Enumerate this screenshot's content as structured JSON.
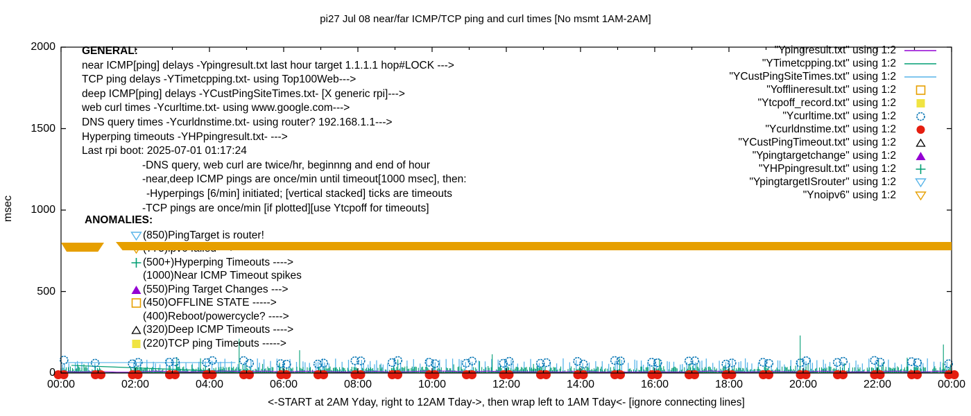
{
  "title": "pi27 Jul 08  near/far ICMP/TCP ping and curl times [No msmt 1AM-2AM]",
  "ylabel": "msec",
  "x_axis_note": "<-START at 2AM Yday, right to 12AM Tday->, then wrap left to 1AM Tday<- [ignore connecting lines]",
  "general": {
    "heading": "GENERAL:",
    "lines": [
      {
        "text": "near ICMP[ping] delays -Ypingresult.txt last hour target 1.1.1.1 hop#LOCK --->",
        "indent": 0
      },
      {
        "text": "TCP ping delays -YTimetcpping.txt- using Top100Web--->",
        "indent": 0
      },
      {
        "text": "deep ICMP[ping] delays -YCustPingSiteTimes.txt- [X generic rpi]--->",
        "indent": 0
      },
      {
        "text": "web curl times -Ycurltime.txt- using www.google.com--->",
        "indent": 0
      },
      {
        "text": "DNS query times -Ycurldnstime.txt- using router? 192.168.1.1--->",
        "indent": 0
      },
      {
        "text": "Hyperping timeouts -YHPpingresult.txt- --->",
        "indent": 0
      },
      {
        "text": "Last rpi boot: 2025-07-01 01:17:24",
        "indent": 0
      },
      {
        "text": "-DNS query, web curl are twice/hr, beginnng and end of hour",
        "indent": 1
      },
      {
        "text": "-near,deep ICMP pings are once/min until timeout[1000 msec], then:",
        "indent": 1
      },
      {
        "text": "-Hyperpings [6/min] initiated; [vertical stacked] ticks are timeouts",
        "indent": 2
      },
      {
        "text": "-TCP pings are once/min [if plotted][use Ytcpoff for timeouts]",
        "indent": 1
      }
    ]
  },
  "anomalies": {
    "heading": "ANOMALIES:",
    "items": [
      {
        "marker": "open-inv-triangle",
        "color": "#56b4e9",
        "text": "(850)PingTarget is router!"
      },
      {
        "marker": "open-inv-triangle",
        "color": "#e69f00",
        "text": "(775)ipv6 failed --->"
      },
      {
        "marker": "plus",
        "color": "#009e73",
        "text": "(500+)Hyperping Timeouts ---->"
      },
      {
        "marker": "none",
        "color": "",
        "text": "(1000)Near ICMP Timeout spikes"
      },
      {
        "marker": "filled-triangle",
        "color": "#9400d3",
        "text": "(550)Ping Target Changes --->"
      },
      {
        "marker": "open-square",
        "color": "#e69f00",
        "text": "(450)OFFLINE STATE ----->"
      },
      {
        "marker": "none",
        "color": "",
        "text": "(400)Reboot/powercycle? ---->"
      },
      {
        "marker": "open-triangle",
        "color": "#000000",
        "text": "(320)Deep ICMP Timeouts ---->"
      },
      {
        "marker": "filled-square",
        "color": "#f0e442",
        "text": "(220)TCP ping Timeouts ----->"
      }
    ]
  },
  "legend": [
    {
      "label": "\"Ypingresult.txt\" using 1:2",
      "marker": "line",
      "color": "#9400d3"
    },
    {
      "label": "\"YTimetcpping.txt\" using 1:2",
      "marker": "line",
      "color": "#009e73"
    },
    {
      "label": "\"YCustPingSiteTimes.txt\" using 1:2",
      "marker": "line",
      "color": "#56b4e9"
    },
    {
      "label": "\"Yofflineresult.txt\" using 1:2",
      "marker": "open-square",
      "color": "#e69f00"
    },
    {
      "label": "\"Ytcpoff_record.txt\" using 1:2",
      "marker": "filled-square",
      "color": "#f0e442"
    },
    {
      "label": "\"Ycurltime.txt\" using 1:2",
      "marker": "open-circle",
      "color": "#0072b2"
    },
    {
      "label": "\"Ycurldnstime.txt\" using 1:2",
      "marker": "filled-circle",
      "color": "#e51e10"
    },
    {
      "label": "\"YCustPingTimeout.txt\" using 1:2",
      "marker": "open-triangle",
      "color": "#000000"
    },
    {
      "label": "\"Ypingtargetchange\" using 1:2",
      "marker": "filled-triangle",
      "color": "#9400d3"
    },
    {
      "label": "\"YHPpingresult.txt\" using 1:2",
      "marker": "plus",
      "color": "#009e73"
    },
    {
      "label": "\"YpingtargetISrouter\" using 1:2",
      "marker": "open-inv-triangle",
      "color": "#56b4e9"
    },
    {
      "label": "\"Ynoipv6\" using 1:2",
      "marker": "open-inv-triangle",
      "color": "#e69f00"
    }
  ],
  "chart_data": {
    "type": "line",
    "title": "pi27 Jul 08  near/far ICMP/TCP ping and curl times [No msmt 1AM-2AM]",
    "xlabel": "<-START at 2AM Yday, right to 12AM Tday->, then wrap left to 1AM Tday<- [ignore connecting lines]",
    "ylabel": "msec",
    "ylim": [
      0,
      2000
    ],
    "yticks": [
      "0",
      "500",
      "1000",
      "1500",
      "2000"
    ],
    "xlim_hours": [
      0,
      24
    ],
    "xticks": [
      "00:00",
      "02:00",
      "04:00",
      "06:00",
      "08:00",
      "10:00",
      "12:00",
      "14:00",
      "16:00",
      "18:00",
      "20:00",
      "22:00",
      "00:00"
    ],
    "grid": false,
    "legend_position": "top-right-inside",
    "no_measurement_gap_hours": [
      1.07,
      1.85
    ],
    "noipv6_band": {
      "color": "#e69f00",
      "msec": 779,
      "segments_hours": [
        [
          0.0,
          1.12
        ],
        [
          1.47,
          24.0
        ]
      ]
    },
    "series": [
      {
        "name": "Ypingresult.txt near ICMP ping",
        "style": "line",
        "color": "#9400d3",
        "summary": "flat near 0-15 msec all day"
      },
      {
        "name": "YTimetcpping.txt TCP ping",
        "style": "line",
        "color": "#009e73",
        "summary": "dense noise 3-45 msec",
        "spikes": [
          {
            "hour": 4.8,
            "msec": 210
          },
          {
            "hour": 6.43,
            "msec": 140
          },
          {
            "hour": 11.62,
            "msec": 115
          },
          {
            "hour": 19.92,
            "msec": 230
          },
          {
            "hour": 23.78,
            "msec": 175
          }
        ]
      },
      {
        "name": "YCustPingSiteTimes.txt deep ICMP",
        "style": "line",
        "color": "#56b4e9",
        "summary": "vertical ticks 50-90 msec roughly every 10 min; connecting line across 1AM-2AM gap at ~64 msec"
      },
      {
        "name": "Ycurltime.txt web curl",
        "style": "open-circle",
        "color": "#0072b2",
        "summary": "pairs of points 54-80 msec twice per hour at hour boundaries"
      },
      {
        "name": "Ycurldnstime.txt DNS query",
        "style": "filled-circle",
        "color": "#e51e10",
        "summary": "pairs of points at 0 msec every hour"
      },
      {
        "name": "YHPpingresult.txt hyperping",
        "style": "plus",
        "color": "#009e73",
        "summary": "mixed into baseline noise"
      },
      {
        "name": "Ynoipv6",
        "style": "open-inv-triangle",
        "color": "#e69f00",
        "summary": "continuous marker band at ~779 msec with gap near 01:10-01:30"
      },
      {
        "name": "connecting-line-artifact",
        "style": "line",
        "color": "#009e73",
        "points_hours_msec": [
          [
            0.28,
            47
          ],
          [
            4.67,
            8
          ]
        ]
      }
    ]
  }
}
